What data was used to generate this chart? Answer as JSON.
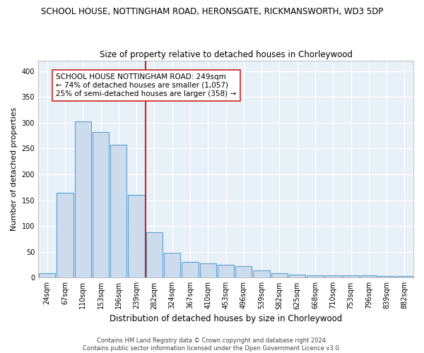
{
  "title_line1": "SCHOOL HOUSE, NOTTINGHAM ROAD, HERONSGATE, RICKMANSWORTH, WD3 5DP",
  "title_line2": "Size of property relative to detached houses in Chorleywood",
  "xlabel": "Distribution of detached houses by size in Chorleywood",
  "ylabel": "Number of detached properties",
  "footnote": "Contains HM Land Registry data © Crown copyright and database right 2024.\nContains public sector information licensed under the Open Government Licence v3.0.",
  "categories": [
    "24sqm",
    "67sqm",
    "110sqm",
    "153sqm",
    "196sqm",
    "239sqm",
    "282sqm",
    "324sqm",
    "367sqm",
    "410sqm",
    "453sqm",
    "496sqm",
    "539sqm",
    "582sqm",
    "625sqm",
    "668sqm",
    "710sqm",
    "753sqm",
    "796sqm",
    "839sqm",
    "882sqm"
  ],
  "values": [
    9,
    165,
    303,
    282,
    258,
    160,
    88,
    48,
    30,
    28,
    25,
    22,
    14,
    8,
    6,
    5,
    5,
    4,
    4,
    3,
    3
  ],
  "bar_color": "#ccdcec",
  "bar_edge_color": "#5a9fd4",
  "highlight_color": "#cc2222",
  "vline_index": 5,
  "annotation_title": "SCHOOL HOUSE NOTTINGHAM ROAD: 249sqm",
  "annotation_line1": "← 74% of detached houses are smaller (1,057)",
  "annotation_line2": "25% of semi-detached houses are larger (358) →",
  "ylim": [
    0,
    420
  ],
  "yticks": [
    0,
    50,
    100,
    150,
    200,
    250,
    300,
    350,
    400
  ],
  "title_fontsize": 8.5,
  "subtitle_fontsize": 8.5,
  "xlabel_fontsize": 8.5,
  "ylabel_fontsize": 8.0,
  "tick_fontsize": 7.0,
  "annotation_fontsize": 7.5,
  "footnote_fontsize": 6.0,
  "background_color": "#ffffff",
  "plot_bg_color": "#e8f0f8",
  "grid_color": "#ffffff"
}
